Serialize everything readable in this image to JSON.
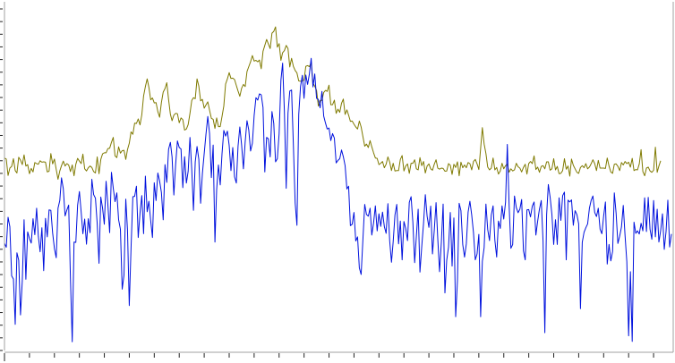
{
  "chart_data": {
    "type": "line",
    "title": "",
    "xlabel": "",
    "ylabel": "",
    "grid": false,
    "legend": "none",
    "xlim": [
      0,
      373
    ],
    "ylim": [
      0,
      100
    ],
    "colors": {
      "upper_trace": "#7f7a00",
      "lower_trace": "#0011dd",
      "plot_border": "#a0a0a0",
      "panel_background": "#ffffff",
      "tick_color": "#222222"
    },
    "series": [
      {
        "color": "#7f7a00",
        "values": [
          55.2,
          54.9,
          50.2,
          52.3,
          52.8,
          55.0,
          51.6,
          50.9,
          55.4,
          54.6,
          53.3,
          56.1,
          52.9,
          53.3,
          50.7,
          52.2,
          51.2,
          53.9,
          53.6,
          53.4,
          54.4,
          54.0,
          54.1,
          54.0,
          51.2,
          51.4,
          56.5,
          53.5,
          54.9,
          51.9,
          49.1,
          51.5,
          53.0,
          54.3,
          52.9,
          53.6,
          53.2,
          51.3,
          53.2,
          50.1,
          53.4,
          55.1,
          54.3,
          53.6,
          56.3,
          52.1,
          51.5,
          52.4,
          52.9,
          52.5,
          51.3,
          50.9,
          55.5,
          50.7,
          54.8,
          56.4,
          56.7,
          56.7,
          57.9,
          58.0,
          59.7,
          61.1,
          55.8,
          55.3,
          58.4,
          56.6,
          57.3,
          57.4,
          54.8,
          57.6,
          59.4,
          62.7,
          62.0,
          65.2,
          65.1,
          66.4,
          64.7,
          67.6,
          73.0,
          75.7,
          77.9,
          75.5,
          71.9,
          72.4,
          71.0,
          71.1,
          68.5,
          66.9,
          71.1,
          74.1,
          75.1,
          76.8,
          72.0,
          67.8,
          65.9,
          67.5,
          68.0,
          67.9,
          65.3,
          66.7,
          66.2,
          63.2,
          63.5,
          64.8,
          68.0,
          71.7,
          72.5,
          72.2,
          77.9,
          75.8,
          71.6,
          72.0,
          69.5,
          70.4,
          71.3,
          68.9,
          66.6,
          66.3,
          63.7,
          66.7,
          64.2,
          64.2,
          67.1,
          70.1,
          76.4,
          77.9,
          79.7,
          78.0,
          78.1,
          77.7,
          76.0,
          74.4,
          72.9,
          75.2,
          76.3,
          75.7,
          80.0,
          81.4,
          82.8,
          84.6,
          83.0,
          83.2,
          82.8,
          83.3,
          80.8,
          85.8,
          87.5,
          89.2,
          87.9,
          86.6,
          91.0,
          91.5,
          92.8,
          87.0,
          88.0,
          83.2,
          85.4,
          86.0,
          87.5,
          86.6,
          81.3,
          83.8,
          81.5,
          80.3,
          79.6,
          77.3,
          77.2,
          77.3,
          77.5,
          81.5,
          81.7,
          81.4,
          82.6,
          76.7,
          75.8,
          74.6,
          70.1,
          71.7,
          71.7,
          74.0,
          74.6,
          74.3,
          76.1,
          70.5,
          70.5,
          71.8,
          68.0,
          69.2,
          68.3,
          70.9,
          72.1,
          67.7,
          69.0,
          67.5,
          65.7,
          65.8,
          64.9,
          64.1,
          63.5,
          65.8,
          64.1,
          61.3,
          58.6,
          59.2,
          58.2,
          60.2,
          58.4,
          56.7,
          55.2,
          55.1,
          53.3,
          53.7,
          54.2,
          52.4,
          53.4,
          55.5,
          54.0,
          51.6,
          53.7,
          51.5,
          51.6,
          51.6,
          54.8,
          55.9,
          51.5,
          52.9,
          53.5,
          50.8,
          53.7,
          53.7,
          54.7,
          52.1,
          51.8,
          55.3,
          53.0,
          54.2,
          50.9,
          52.9,
          53.5,
          52.1,
          51.7,
          53.4,
          54.7,
          52.3,
          52.0,
          52.3,
          52.2,
          51.4,
          51.5,
          53.6,
          53.1,
          50.5,
          53.4,
          52.5,
          54.1,
          50.1,
          54.0,
          52.4,
          53.2,
          52.4,
          53.9,
          53.6,
          51.8,
          54.2,
          54.8,
          53.5,
          51.9,
          58.0,
          63.9,
          59.2,
          56.5,
          52.6,
          51.8,
          52.3,
          55.2,
          51.8,
          52.5,
          50.6,
          51.5,
          53.7,
          52.1,
          53.0,
          53.5,
          51.1,
          52.1,
          51.5,
          51.8,
          53.7,
          52.7,
          52.3,
          51.2,
          52.5,
          53.4,
          50.6,
          53.6,
          54.2,
          53.6,
          55.8,
          51.9,
          52.6,
          51.1,
          52.8,
          53.0,
          52.1,
          54.1,
          54.1,
          51.7,
          52.1,
          55.0,
          51.8,
          52.8,
          50.7,
          50.8,
          51.6,
          55.0,
          52.0,
          52.9,
          50.0,
          54.9,
          53.1,
          52.1,
          51.1,
          50.8,
          52.5,
          53.0,
          52.4,
          53.6,
          52.1,
          52.6,
          53.6,
          54.7,
          53.6,
          51.6,
          54.5,
          52.3,
          52.3,
          52.3,
          52.2,
          55.2,
          52.9,
          51.2,
          50.8,
          53.4,
          53.5,
          52.8,
          51.6,
          53.9,
          53.2,
          54.2,
          53.6,
          54.0,
          52.6,
          55.1,
          51.6,
          51.9,
          51.8,
          53.5,
          57.6,
          51.3,
          50.1,
          52.3,
          52.6,
          51.5,
          51.1,
          51.7,
          58.3,
          51.1,
          52.9,
          54.4
        ]
      },
      {
        "color": "#0011dd",
        "values": [
          30.8,
          29.6,
          38.2,
          35.5,
          21.4,
          20.5,
          7.5,
          28.0,
          25.9,
          10.2,
          20.0,
          37.5,
          20.4,
          34.0,
          32.1,
          30.8,
          37.8,
          33.2,
          40.8,
          32.8,
          28.3,
          35.2,
          22.9,
          37.9,
          32.6,
          40.3,
          40.2,
          33.7,
          29.2,
          26.6,
          40.8,
          43.0,
          49.5,
          46.4,
          38.6,
          40.3,
          41.7,
          20.6,
          2.5,
          31.1,
          31.0,
          41.7,
          45.6,
          39.6,
          33.5,
          37.7,
          30.5,
          37.8,
          33.8,
          49.1,
          44.7,
          43.7,
          36.3,
          25.0,
          44.0,
          40.8,
          36.2,
          48.5,
          41.8,
          33.8,
          51.1,
          46.6,
          42.7,
          45.2,
          37.5,
          34.8,
          17.6,
          21.6,
          43.4,
          34.7,
          12.9,
          29.5,
          44.1,
          44.2,
          47.1,
          32.4,
          39.4,
          44.4,
          33.5,
          50.0,
          39.8,
          42.8,
          37.3,
          32.4,
          48.1,
          43.0,
          50.9,
          48.6,
          45.3,
          37.5,
          53.3,
          48.2,
          57.7,
          59.7,
          55.5,
          44.6,
          53.4,
          60.1,
          58.2,
          57.8,
          46.7,
          55.6,
          48.0,
          51.4,
          61.1,
          51.9,
          40.2,
          54.1,
          58.5,
          54.8,
          42.2,
          50.8,
          56.5,
          62.1,
          67.1,
          62.2,
          49.6,
          58.9,
          31.1,
          46.1,
          53.2,
          47.5,
          56.4,
          63.1,
          61.5,
          62.9,
          58.8,
          51.6,
          58.2,
          49.8,
          48.0,
          58.6,
          64.1,
          58.9,
          52.1,
          59.9,
          65.9,
          63.2,
          57.2,
          59.4,
          67.4,
          72.5,
          71.8,
          73.6,
          73.3,
          69.7,
          51.2,
          61.1,
          60.7,
          55.5,
          68.5,
          65.1,
          54.1,
          55.0,
          62.2,
          77.5,
          82.4,
          68.4,
          46.5,
          68.1,
          74.4,
          74.7,
          59.0,
          42.3,
          35.9,
          67.7,
          75.7,
          78.9,
          72.3,
          79.0,
          76.3,
          79.3,
          83.8,
          75.6,
          79.3,
          72.3,
          72.0,
          69.6,
          74.3,
          67.2,
          65.2,
          63.5,
          63.8,
          60.2,
          62.2,
          60.9,
          53.8,
          54.5,
          55.0,
          57.5,
          55.6,
          53.0,
          46.3,
          47.1,
          35.8,
          36.2,
          39.6,
          31.4,
          32.6,
          23.7,
          21.8,
          31.9,
          41.9,
          39.0,
          38.5,
          40.8,
          33.1,
          36.6,
          41.5,
          34.3,
          39.2,
          35.6,
          39.7,
          35.6,
          33.6,
          42.1,
          31.4,
          25.3,
          31.2,
          38.9,
          41.9,
          30.6,
          37.1,
          26.0,
          37.0,
          35.0,
          31.5,
          42.5,
          44.1,
          36.7,
          25.2,
          32.8,
          40.5,
          22.5,
          29.8,
          36.4,
          44.7,
          38.5,
          35.3,
          41.4,
          27.7,
          34.5,
          42.4,
          32.1,
          22.6,
          31.0,
          42.0,
          16.5,
          25.9,
          29.6,
          39.6,
          24.2,
          38.0,
          9.7,
          20.0,
          42.2,
          40.1,
          30.4,
          26.8,
          30.6,
          39.7,
          42.8,
          38.9,
          33.8,
          26.0,
          27.7,
          33.3,
          9.7,
          25.6,
          29.5,
          42.0,
          34.7,
          31.5,
          38.9,
          41.5,
          31.6,
          26.8,
          37.1,
          35.0,
          41.5,
          37.7,
          42.5,
          59.1,
          41.7,
          29.3,
          30.4,
          44.3,
          41.0,
          39.5,
          40.5,
          43.3,
          28.6,
          26.0,
          40.3,
          40.4,
          38.3,
          41.4,
          42.6,
          33.1,
          37.1,
          40.6,
          43.0,
          31.4,
          5.1,
          38.9,
          47.6,
          44.0,
          39.0,
          30.4,
          37.5,
          30.4,
          43.8,
          37.3,
          44.4,
          45.4,
          26.0,
          43.1,
          42.6,
          43.2,
          35.9,
          40.1,
          39.0,
          36.3,
          12.0,
          31.0,
          33.9,
          35.2,
          36.3,
          40.8,
          43.1,
          44.3,
          39.6,
          38.4,
          40.8,
          34.8,
          33.5,
          38.6,
          42.6,
          24.8,
          30.4,
          25.7,
          28.4,
          45.2,
          39.4,
          30.7,
          32.8,
          35.4,
          41.6,
          33.0,
          25.4,
          4.2,
          22.6,
          2.6,
          36.8,
          33.6,
          34.3,
          33.4,
          36.5,
          34.3,
          43.8,
          34.1,
          43.9,
          34.8,
          31.9,
          43.0,
          32.6,
          40.5,
          31.1,
          34.4,
          39.2,
          29.0,
          34.1,
          43.1,
          29.7,
          33.4
        ]
      }
    ],
    "x_ticks": {
      "major_every": 57,
      "minor_every": 14
    },
    "y_ticks": {
      "minor_count": 27
    }
  }
}
